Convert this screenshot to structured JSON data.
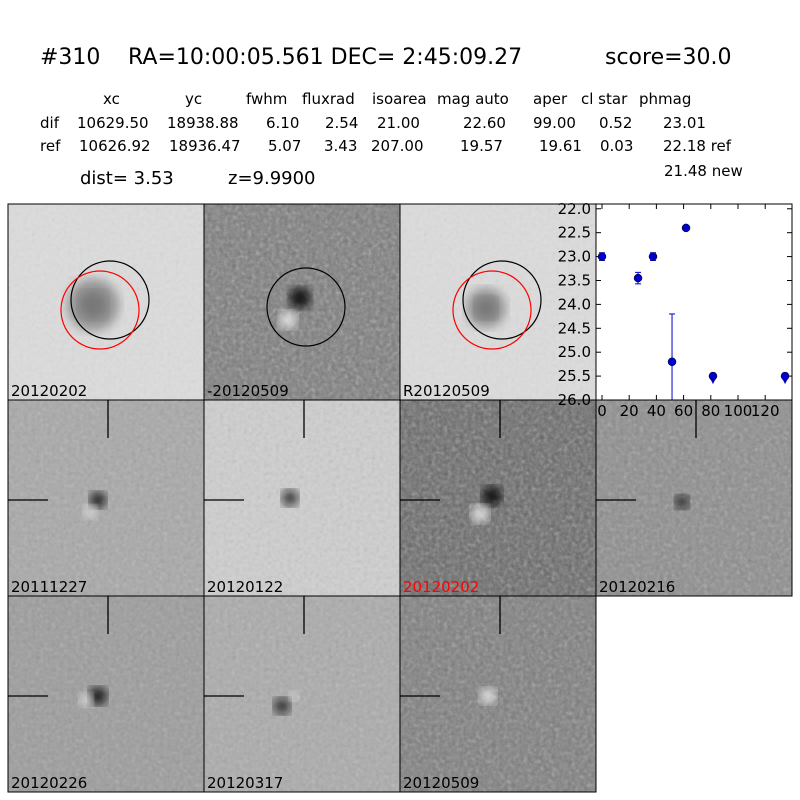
{
  "header": {
    "id": "#310",
    "coords": "RA=10:00:05.561 DEC= 2:45:09.27",
    "score": "score=30.0"
  },
  "table": {
    "columns": [
      "xc",
      "yc",
      "fwhm",
      "fluxrad",
      "isoarea",
      "mag auto",
      "aper",
      "cl star",
      "phmag"
    ],
    "rows": [
      {
        "label": "dif",
        "cells": [
          "10629.50",
          "18938.88",
          "6.10",
          "2.54",
          "21.00",
          "22.60",
          "99.00",
          "0.52",
          "23.01"
        ]
      },
      {
        "label": "ref",
        "cells": [
          "10626.92",
          "18936.47",
          "5.07",
          "3.43",
          "207.00",
          "19.57",
          "19.61",
          "0.03",
          "22.18 ref"
        ]
      }
    ],
    "extra": "21.48 new"
  },
  "dist": "dist=  3.53",
  "z": "z=9.9900",
  "panels": [
    {
      "label": "20120202"
    },
    {
      "label": "-20120509"
    },
    {
      "label": "R20120509"
    },
    {
      "label": "20111227"
    },
    {
      "label": "20120122"
    },
    {
      "label": "20120202",
      "color": "#ff0000"
    },
    {
      "label": "20120216"
    },
    {
      "label": "20120226"
    },
    {
      "label": "20120317"
    },
    {
      "label": "20120509"
    }
  ],
  "chart_data": {
    "type": "scatter",
    "x": [
      0,
      26.5,
      37.5,
      51.5,
      61.8,
      81.6,
      134.6
    ],
    "series": [
      {
        "color": "#0000cc",
        "values": [
          23.0,
          23.45,
          23.0,
          25.2,
          22.4,
          25.5,
          25.5
        ],
        "errors": [
          0.08,
          0.12,
          0.08,
          1.0,
          0.04,
          0.06,
          0.06
        ],
        "limits": [
          false,
          false,
          false,
          false,
          false,
          true,
          true
        ]
      }
    ],
    "xlim": [
      -4.4,
      139.7
    ],
    "ylim": [
      21.9,
      26.0
    ],
    "y_inverted": true,
    "xticks": [
      0,
      20,
      40,
      60,
      80,
      100,
      120
    ],
    "yticks": [
      {
        "value": 22,
        "label": "22.0"
      },
      22.5,
      {
        "value": 23,
        "label": "23.0"
      },
      23.5,
      {
        "value": 24,
        "label": "24.0"
      },
      24.5,
      {
        "value": 25,
        "label": "25.0"
      },
      25.5,
      {
        "value": 26,
        "label": "26.0"
      }
    ]
  }
}
